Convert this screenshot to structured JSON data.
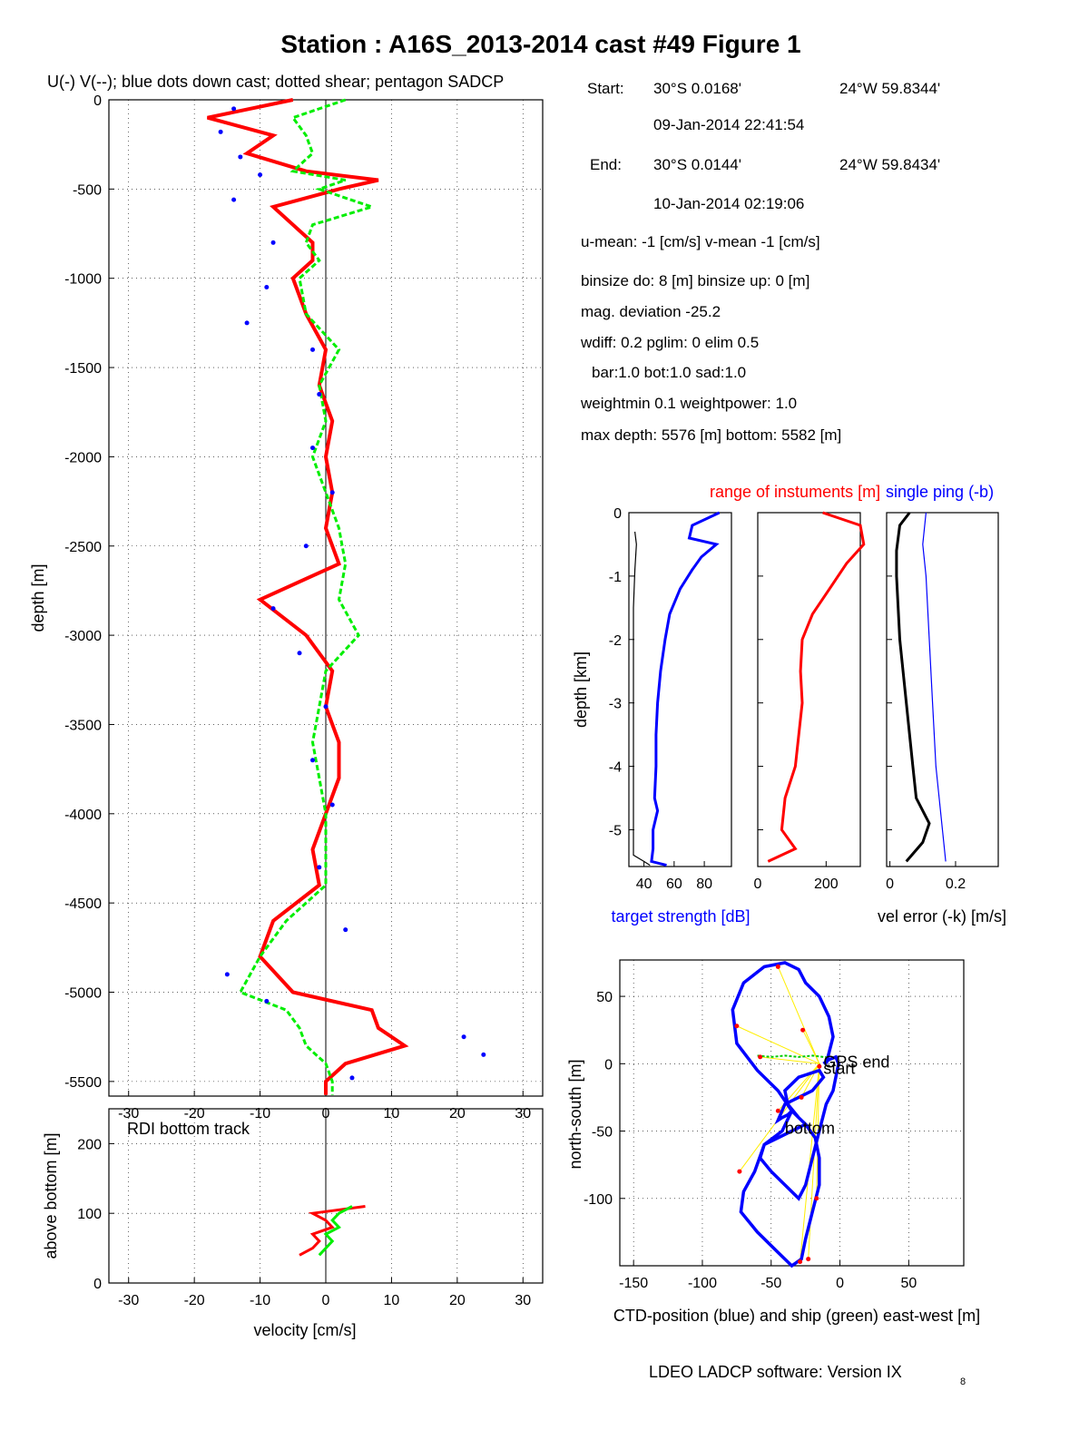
{
  "figure_title": "Station : A16S_2013-2014 cast #49  Figure 1",
  "top_left_caption": "U(-) V(--); blue dots down cast; dotted shear; pentagon SADCP",
  "info": {
    "start_label": "Start:",
    "start_lat": "30°S  0.0168'",
    "start_lon": "24°W 59.8344'",
    "start_time": "09-Jan-2014 22:41:54",
    "end_label": "End:",
    "end_lat": "30°S  0.0144'",
    "end_lon": "24°W 59.8434'",
    "end_time": "10-Jan-2014 02:19:06",
    "means": "u-mean:  -1 [cm/s]    v-mean  -1 [cm/s]",
    "binsize": "binsize do: 8 [m]  binsize up:  0 [m]",
    "mag": "mag. deviation -25.2",
    "wdiff": "wdiff: 0.2  pglim: 0  elim 0.5",
    "bar": "bar:1.0 bot:1.0 sad:1.0",
    "weight": "weightmin 0.1  weightpower: 1.0",
    "maxdepth": "max depth: 5576 [m]   bottom: 5582 [m]"
  },
  "software": "LDEO LADCP software: Version IX",
  "software_sub": "8",
  "chart_data": [
    {
      "id": "velocity_profile",
      "type": "line",
      "ylabel": "depth [m]",
      "xlim": [
        -33,
        33
      ],
      "ylim": [
        -5582,
        0
      ],
      "xticks": [
        "-30",
        "-20",
        "-10",
        "0",
        "10",
        "20",
        "30"
      ],
      "yticks": [
        "0",
        "-500",
        "-1000",
        "-1500",
        "-2000",
        "-2500",
        "-3000",
        "-3500",
        "-4000",
        "-4500",
        "-5000",
        "-5500"
      ],
      "grid": true,
      "series": [
        {
          "key": "U",
          "color": "#ff0000",
          "style": "solid",
          "depth": [
            0,
            -100,
            -200,
            -300,
            -400,
            -450,
            -500,
            -600,
            -700,
            -800,
            -900,
            -1000,
            -1200,
            -1400,
            -1600,
            -1800,
            -2000,
            -2200,
            -2400,
            -2600,
            -2800,
            -3000,
            -3200,
            -3400,
            -3600,
            -3800,
            -4000,
            -4200,
            -4400,
            -4600,
            -4800,
            -5000,
            -5100,
            -5200,
            -5300,
            -5400,
            -5500,
            -5576
          ],
          "values": [
            -5,
            -18,
            -8,
            -12,
            -3,
            8,
            2,
            -8,
            -5,
            -2,
            -2,
            -5,
            -3,
            0,
            -1,
            1,
            0,
            1,
            0,
            2,
            -10,
            -3,
            1,
            0,
            2,
            2,
            0,
            -2,
            -1,
            -8,
            -10,
            -5,
            7,
            8,
            12,
            3,
            0,
            0
          ]
        },
        {
          "key": "V",
          "color": "#00ee00",
          "style": "dashed",
          "depth": [
            0,
            -100,
            -200,
            -300,
            -400,
            -450,
            -500,
            -600,
            -700,
            -800,
            -900,
            -1000,
            -1200,
            -1400,
            -1600,
            -1800,
            -2000,
            -2200,
            -2400,
            -2600,
            -2800,
            -3000,
            -3200,
            -3400,
            -3600,
            -3800,
            -4000,
            -4200,
            -4400,
            -4600,
            -4800,
            -5000,
            -5100,
            -5200,
            -5300,
            -5400,
            -5500,
            -5576
          ],
          "values": [
            3,
            -5,
            -3,
            -2,
            -5,
            3,
            -1,
            7,
            -2,
            -3,
            -1,
            -4,
            -3,
            2,
            -1,
            0,
            -2,
            0,
            2,
            3,
            2,
            5,
            0,
            -1,
            -2,
            -1,
            0,
            0,
            0,
            -6,
            -10,
            -13,
            -6,
            -4,
            -3,
            0,
            1,
            1
          ]
        },
        {
          "key": "down_cast",
          "color": "#0000ff",
          "style": "dots",
          "depth": [
            -50,
            -180,
            -320,
            -420,
            -560,
            -800,
            -1050,
            -1250,
            -1400,
            -1650,
            -1950,
            -2200,
            -2500,
            -2850,
            -3100,
            -3400,
            -3700,
            -3950,
            -4300,
            -4650,
            -4900,
            -5050,
            -5250,
            -5350,
            -5480
          ],
          "values": [
            -14,
            -16,
            -13,
            -10,
            -14,
            -8,
            -9,
            -12,
            -2,
            -1,
            -2,
            1,
            -3,
            -8,
            -4,
            0,
            -2,
            1,
            -1,
            3,
            -15,
            -9,
            21,
            24,
            4
          ]
        }
      ]
    },
    {
      "id": "bottom_track",
      "type": "line",
      "ylabel": "above bottom [m]",
      "xlabel": "velocity [cm/s]",
      "annotation": "RDI bottom track",
      "xlim": [
        -33,
        33
      ],
      "ylim": [
        0,
        250
      ],
      "xticks": [
        "-30",
        "-20",
        "-10",
        "0",
        "10",
        "20",
        "30"
      ],
      "yticks": [
        "0",
        "100",
        "200"
      ],
      "grid": true,
      "series": [
        {
          "key": "U",
          "color": "#ff0000",
          "height": [
            40,
            50,
            60,
            70,
            80,
            90,
            100,
            110
          ],
          "values": [
            -4,
            -2,
            -1,
            -2,
            1,
            0,
            -2,
            6
          ]
        },
        {
          "key": "V",
          "color": "#00ee00",
          "height": [
            40,
            50,
            60,
            70,
            80,
            90,
            100,
            110
          ],
          "values": [
            -1,
            0,
            1,
            0,
            2,
            1,
            2,
            4
          ]
        }
      ]
    },
    {
      "id": "target_strength",
      "type": "line",
      "header": "range of instuments [m]",
      "header2": "single ping (-b)",
      "ylabel": "depth [km]",
      "xlabel": "target strength [dB]",
      "xlim": [
        30,
        98
      ],
      "ylim": [
        -5.58,
        0
      ],
      "xticks": [
        "40",
        "60",
        "80"
      ],
      "yticks": [
        "0",
        "-1",
        "-2",
        "-3",
        "-4",
        "-5"
      ],
      "series": [
        {
          "key": "ts_blue",
          "color": "#0000ff",
          "depth": [
            0,
            -0.2,
            -0.4,
            -0.5,
            -0.7,
            -0.9,
            -1.2,
            -1.6,
            -2,
            -2.5,
            -3,
            -3.5,
            -4,
            -4.5,
            -4.7,
            -5,
            -5.3,
            -5.5,
            -5.56
          ],
          "values": [
            90,
            72,
            70,
            88,
            78,
            72,
            64,
            57,
            54,
            51,
            49,
            48,
            48,
            47,
            49,
            46,
            46,
            45,
            55
          ]
        },
        {
          "key": "ts_black",
          "color": "#000000",
          "depth": [
            -0.3,
            -0.5,
            -0.9,
            -1.5,
            -2,
            -3,
            -4,
            -5,
            -5.4,
            -5.5,
            -5.56
          ],
          "values": [
            34,
            35,
            34,
            33,
            33,
            33,
            33,
            33,
            33,
            40,
            44
          ]
        }
      ]
    },
    {
      "id": "instrument_range",
      "type": "line",
      "xlim": [
        0,
        300
      ],
      "ylim": [
        -5.58,
        0
      ],
      "xticks": [
        "0",
        "200"
      ],
      "yticks": [
        "0",
        "-1",
        "-2",
        "-3",
        "-4",
        "-5"
      ],
      "series": [
        {
          "key": "range",
          "color": "#ff0000",
          "depth": [
            0,
            -0.2,
            -0.5,
            -0.8,
            -1.2,
            -1.6,
            -2,
            -2.5,
            -3,
            -3.5,
            -4,
            -4.5,
            -5,
            -5.3,
            -5.5
          ],
          "values": [
            190,
            300,
            310,
            260,
            210,
            160,
            130,
            125,
            130,
            120,
            110,
            80,
            70,
            110,
            30
          ]
        }
      ]
    },
    {
      "id": "vel_error",
      "type": "line",
      "xlabel": "vel error (-k) [m/s]",
      "xlim": [
        -0.01,
        0.33
      ],
      "ylim": [
        -5.58,
        0
      ],
      "xticks": [
        "0",
        "0.2"
      ],
      "yticks": [
        "0",
        "-1",
        "-2",
        "-3",
        "-4",
        "-5"
      ],
      "series": [
        {
          "key": "err_black",
          "color": "#000000",
          "depth": [
            0,
            -0.2,
            -0.6,
            -1,
            -2,
            -3,
            -4,
            -4.5,
            -4.9,
            -5.2,
            -5.5
          ],
          "values": [
            0.06,
            0.03,
            0.02,
            0.02,
            0.03,
            0.05,
            0.07,
            0.08,
            0.12,
            0.1,
            0.05
          ]
        },
        {
          "key": "err_blue",
          "color": "#0000ff",
          "depth": [
            0,
            -0.5,
            -1,
            -2,
            -3,
            -4,
            -4.5,
            -5,
            -5.5
          ],
          "values": [
            0.11,
            0.1,
            0.11,
            0.12,
            0.13,
            0.14,
            0.15,
            0.16,
            0.17
          ]
        }
      ]
    },
    {
      "id": "position",
      "type": "line",
      "ylabel": "north-south [m]",
      "xlabel": "CTD-position (blue) and ship (green) east-west [m]",
      "xlim": [
        -160,
        90
      ],
      "ylim": [
        -150,
        77
      ],
      "xticks": [
        "-150",
        "-100",
        "-50",
        "0",
        "50"
      ],
      "yticks": [
        "50",
        "0",
        "-50",
        "-100"
      ],
      "grid": true,
      "annotations": [
        "GPS end",
        "start",
        "bottom"
      ],
      "series": [
        {
          "key": "ctd",
          "color": "#0000ff",
          "x": [
            -10,
            -5,
            -8,
            -15,
            -25,
            -30,
            -40,
            -55,
            -70,
            -78,
            -75,
            -60,
            -45,
            -35,
            -42,
            -55,
            -62,
            -70,
            -72,
            -60,
            -45,
            -35,
            -28,
            -25,
            -20,
            -15,
            -15,
            -18,
            -25,
            -30,
            -35,
            -38,
            -42,
            -45,
            -40,
            -30,
            -20,
            -12,
            -15,
            -30,
            -40,
            -38,
            -30,
            -25,
            -35,
            -45,
            -55,
            -58,
            -50,
            -40,
            -30,
            -25,
            -20,
            -15,
            -10,
            -5,
            -3,
            -1,
            -3,
            -8,
            -12
          ],
          "y": [
            0,
            20,
            35,
            50,
            60,
            70,
            75,
            72,
            60,
            40,
            15,
            -5,
            -20,
            -35,
            -50,
            -60,
            -80,
            -95,
            -110,
            -125,
            -140,
            -150,
            -145,
            -130,
            -110,
            -90,
            -70,
            -55,
            -45,
            -40,
            -35,
            -38,
            -40,
            -42,
            -30,
            -25,
            -20,
            -10,
            -5,
            -10,
            -20,
            -30,
            -40,
            -45,
            -50,
            -55,
            -60,
            -70,
            -80,
            -90,
            -100,
            -90,
            -70,
            -50,
            -30,
            -20,
            -10,
            0,
            5,
            3,
            0
          ]
        },
        {
          "key": "ship",
          "color": "#00cc00",
          "x": [
            -60,
            -50,
            -40,
            -30,
            -20,
            -12,
            -10
          ],
          "y": [
            6,
            5,
            6,
            5,
            6,
            5,
            5
          ]
        },
        {
          "key": "waypoints",
          "color": "#ff0000",
          "x": [
            -45,
            -75,
            -27,
            -58,
            -28,
            -45,
            -15,
            -73,
            -17,
            -23,
            -29
          ],
          "y": [
            72,
            28,
            25,
            5,
            -25,
            -35,
            -2,
            -80,
            -100,
            -145,
            -147
          ]
        }
      ]
    }
  ]
}
